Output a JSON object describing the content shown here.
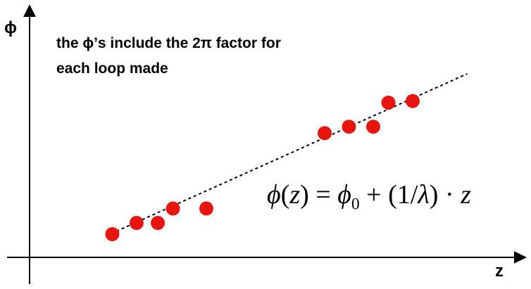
{
  "axes": {
    "y_label": "ϕ",
    "x_label": "z"
  },
  "note": {
    "line1": "the ϕ’s include the 2π factor for",
    "line2": "each loop made"
  },
  "formula": "ϕ(z) = ϕ0 + (1/λ) · z",
  "colors": {
    "points": "#e8150e",
    "axes": "#000000",
    "fit_line": "#000000"
  },
  "chart_data": {
    "type": "scatter",
    "x": [
      1.0,
      1.4,
      1.75,
      2.0,
      2.55,
      4.5,
      4.9,
      5.3,
      5.55,
      5.95
    ],
    "y": [
      1.0,
      1.35,
      1.35,
      1.8,
      1.8,
      4.15,
      4.35,
      4.35,
      5.1,
      5.15
    ],
    "fit": {
      "x": [
        0.9,
        6.85
      ],
      "y": [
        0.95,
        6.0
      ]
    },
    "xlim": [
      -0.85,
      7.9
    ],
    "ylim": [
      -0.6,
      8.3
    ],
    "grid": false,
    "legend": "none"
  }
}
